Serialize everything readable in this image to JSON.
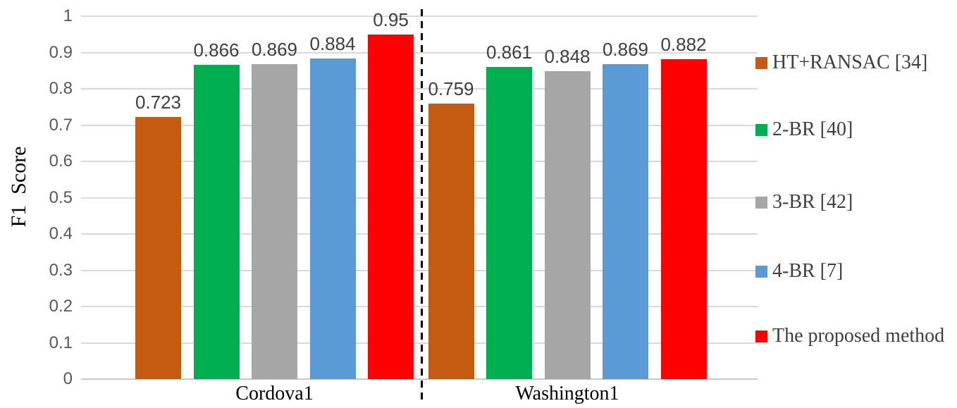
{
  "chart_data": {
    "type": "bar",
    "title": "",
    "xlabel": "",
    "ylabel": "F1  Score",
    "categories": [
      "Cordova1",
      "Washington1"
    ],
    "series": [
      {
        "name": "HT+RANSAC [34]",
        "color": "#C55A11",
        "values": [
          0.723,
          0.759
        ]
      },
      {
        "name": "2-BR [40]",
        "color": "#00B050",
        "values": [
          0.866,
          0.861
        ]
      },
      {
        "name": "3-BR [42]",
        "color": "#A6A6A6",
        "values": [
          0.869,
          0.848
        ]
      },
      {
        "name": "4-BR [7]",
        "color": "#5B9BD5",
        "values": [
          0.884,
          0.869
        ]
      },
      {
        "name": "The proposed method",
        "color": "#FF0000",
        "values": [
          0.95,
          0.882
        ]
      }
    ],
    "data_labels": [
      [
        "0.723",
        "0.866",
        "0.869",
        "0.884",
        "0.95"
      ],
      [
        "0.759",
        "0.861",
        "0.848",
        "0.869",
        "0.882"
      ]
    ],
    "y_ticks": [
      "0",
      "0.1",
      "0.2",
      "0.3",
      "0.4",
      "0.5",
      "0.6",
      "0.7",
      "0.8",
      "0.9",
      "1"
    ],
    "ylim": [
      0,
      1
    ],
    "grid": true,
    "legend_position": "right",
    "group_separator": "vertical-dashed-line"
  },
  "colors": {
    "grid": "#D9D9D9",
    "axis": "#C9C9C9",
    "tick_text": "#595959",
    "data_label_text": "#3F3F3F",
    "category_text": "#000000",
    "legend_text": "#3F3F3F",
    "separator": "#000000",
    "background": "#FFFFFF"
  }
}
